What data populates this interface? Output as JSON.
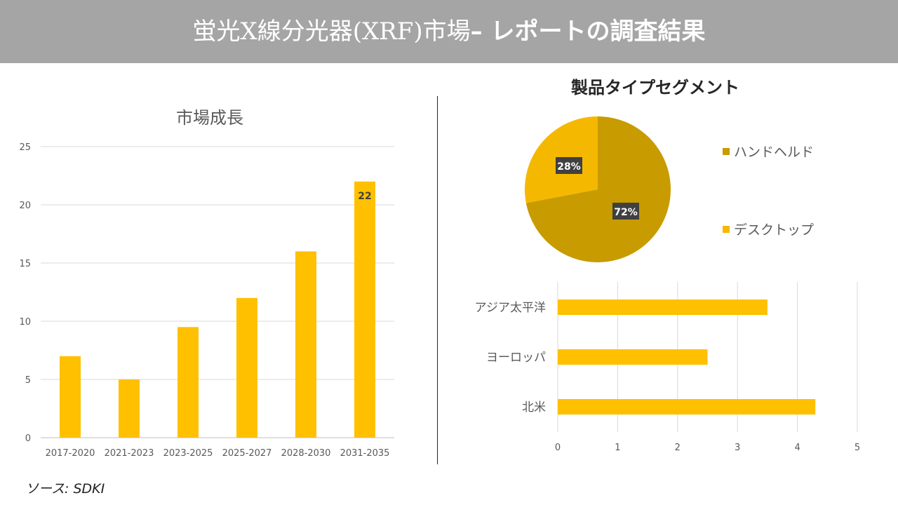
{
  "header": {
    "title_a": "蛍光X線分光器(XRF)市場",
    "title_b": "– レポートの調査結果"
  },
  "source": "ソース: SDKI",
  "chart_data": [
    {
      "type": "bar",
      "title": "市場成長",
      "categories": [
        "2017-2020",
        "2021-2023",
        "2023-2025",
        "2025-2027",
        "2028-2030",
        "2031-2035"
      ],
      "values": [
        7,
        5,
        9.5,
        12,
        16,
        22
      ],
      "data_labels": {
        "2031-2035": "22"
      },
      "ylim": [
        0,
        25
      ],
      "yticks": [
        0,
        5,
        10,
        15,
        20,
        25
      ],
      "grid": true,
      "color": "#FFC000"
    },
    {
      "type": "pie",
      "title": "製品タイプセグメント",
      "labels": [
        "ハンドヘルド",
        "デスクトップ"
      ],
      "values": [
        72,
        28
      ],
      "data_labels": [
        "72%",
        "28%"
      ],
      "colors": [
        "#C89B00",
        "#F5B800"
      ],
      "legend": "right"
    },
    {
      "type": "bar",
      "orientation": "horizontal",
      "categories": [
        "アジア太平洋",
        "ヨーロッパ",
        "北米"
      ],
      "values": [
        3.5,
        2.5,
        4.3
      ],
      "xlim": [
        0,
        5
      ],
      "xticks": [
        0,
        1,
        2,
        3,
        4,
        5
      ],
      "grid": true,
      "color": "#FFC000"
    }
  ]
}
